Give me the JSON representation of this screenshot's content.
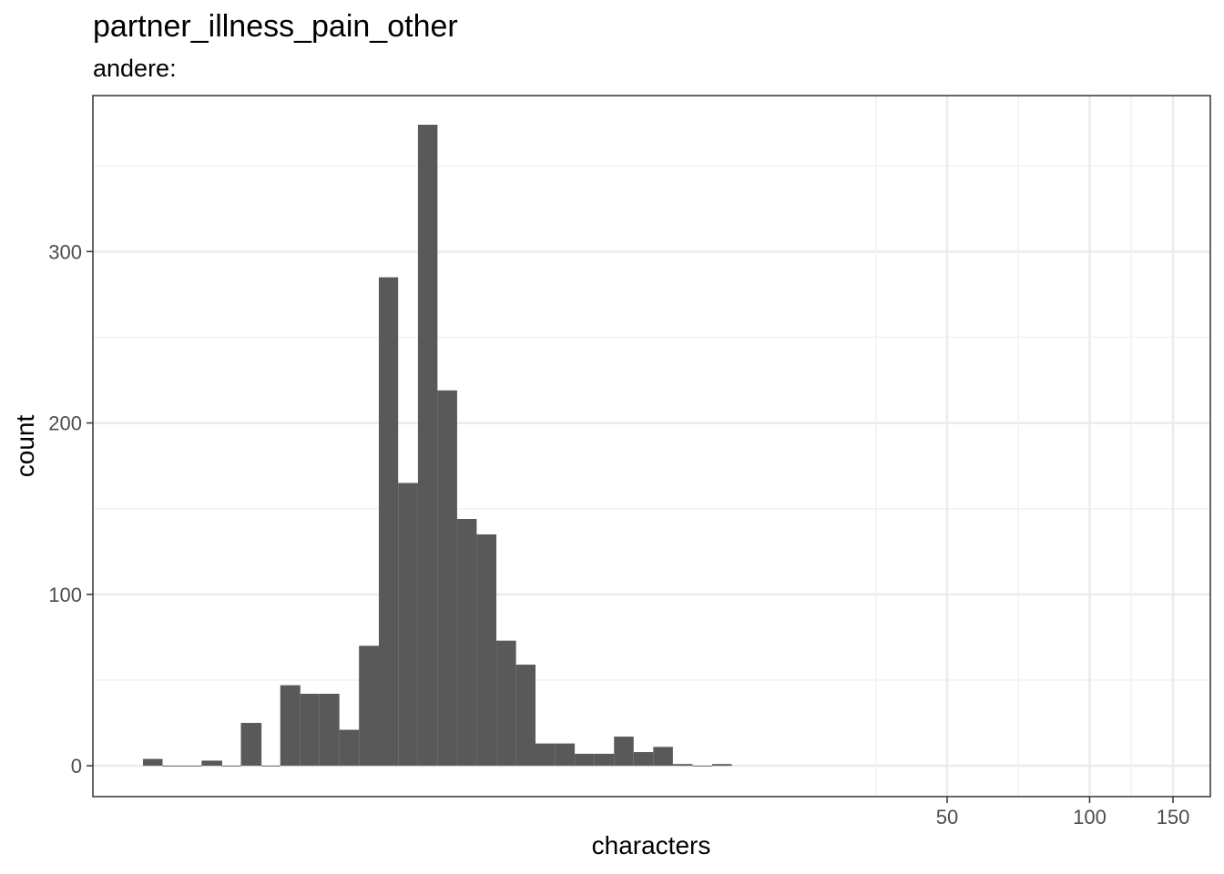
{
  "chart_data": {
    "type": "bar",
    "title": "partner_illness_pain_other",
    "subtitle": "andere:",
    "xlabel": "characters",
    "ylabel": "count",
    "x_scale": "log10",
    "x_ticks": [
      50,
      100,
      150
    ],
    "y_ticks": [
      0,
      100,
      200,
      300
    ],
    "ylim": [
      -18,
      391
    ],
    "grid": true,
    "bins": [
      {
        "from": 1.0,
        "to": 1.1,
        "count": 4
      },
      {
        "from": 1.1,
        "to": 1.21,
        "count": 0
      },
      {
        "from": 1.21,
        "to": 1.33,
        "count": 0
      },
      {
        "from": 1.33,
        "to": 1.47,
        "count": 3
      },
      {
        "from": 1.47,
        "to": 1.61,
        "count": 0
      },
      {
        "from": 1.61,
        "to": 1.78,
        "count": 25
      },
      {
        "from": 1.78,
        "to": 1.95,
        "count": 0
      },
      {
        "from": 1.95,
        "to": 2.15,
        "count": 47
      },
      {
        "from": 2.15,
        "to": 2.36,
        "count": 42
      },
      {
        "from": 2.36,
        "to": 2.6,
        "count": 42
      },
      {
        "from": 2.6,
        "to": 2.86,
        "count": 21
      },
      {
        "from": 2.86,
        "to": 3.15,
        "count": 70
      },
      {
        "from": 3.15,
        "to": 3.46,
        "count": 285
      },
      {
        "from": 3.46,
        "to": 3.81,
        "count": 165
      },
      {
        "from": 3.81,
        "to": 4.19,
        "count": 374
      },
      {
        "from": 4.19,
        "to": 4.61,
        "count": 219
      },
      {
        "from": 4.61,
        "to": 5.07,
        "count": 144
      },
      {
        "from": 5.07,
        "to": 5.58,
        "count": 135
      },
      {
        "from": 5.58,
        "to": 6.14,
        "count": 73
      },
      {
        "from": 6.14,
        "to": 6.75,
        "count": 59
      },
      {
        "from": 6.75,
        "to": 7.43,
        "count": 13
      },
      {
        "from": 7.43,
        "to": 8.17,
        "count": 13
      },
      {
        "from": 8.17,
        "to": 8.99,
        "count": 7
      },
      {
        "from": 8.99,
        "to": 9.89,
        "count": 7
      },
      {
        "from": 9.89,
        "to": 10.88,
        "count": 17
      },
      {
        "from": 10.88,
        "to": 11.97,
        "count": 8
      },
      {
        "from": 11.97,
        "to": 13.17,
        "count": 11
      },
      {
        "from": 13.17,
        "to": 14.49,
        "count": 1
      },
      {
        "from": 14.49,
        "to": 15.94,
        "count": 0
      },
      {
        "from": 15.94,
        "to": 17.54,
        "count": 1
      }
    ],
    "colors": {
      "bar": "#595959",
      "panel_border": "#333333",
      "grid_major": "#ebebeb",
      "grid_minor": "#f2f2f2"
    }
  }
}
